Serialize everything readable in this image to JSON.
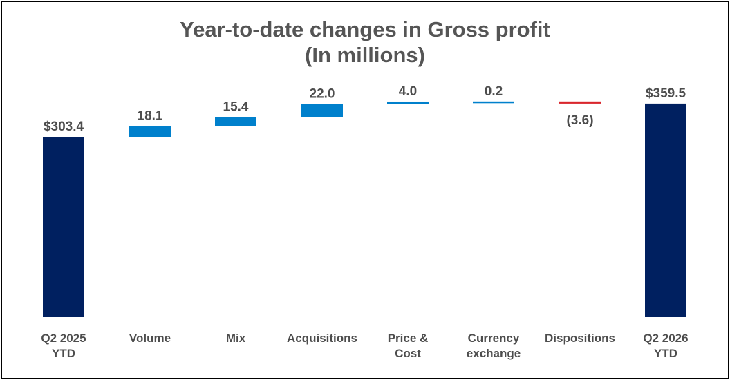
{
  "chart_data": {
    "type": "bar",
    "subtype": "waterfall",
    "title": "Year-to-date changes in Gross profit",
    "subtitle": "(In millions)",
    "categories": [
      "Q2 2025\nYTD",
      "Volume",
      "Mix",
      "Acquisitions",
      "Price &\nCost",
      "Currency\nexchange",
      "Dispositions",
      "Q2 2026\nYTD"
    ],
    "values": [
      303.4,
      18.1,
      15.4,
      22.0,
      4.0,
      0.2,
      -3.6,
      359.5
    ],
    "kinds": [
      "total",
      "delta",
      "delta",
      "delta",
      "delta",
      "delta",
      "delta",
      "total"
    ],
    "data_labels": [
      "$303.4",
      "18.1",
      "15.4",
      "22.0",
      "4.0",
      "0.2",
      "(3.6)",
      "$359.5"
    ],
    "ylim": [
      0,
      378
    ],
    "colors": {
      "total": "#002060",
      "increase": "#0080cc",
      "decrease": "#d9262d",
      "label": "#4d4d4d",
      "title": "#555555"
    },
    "grid": false,
    "legend": "none"
  }
}
